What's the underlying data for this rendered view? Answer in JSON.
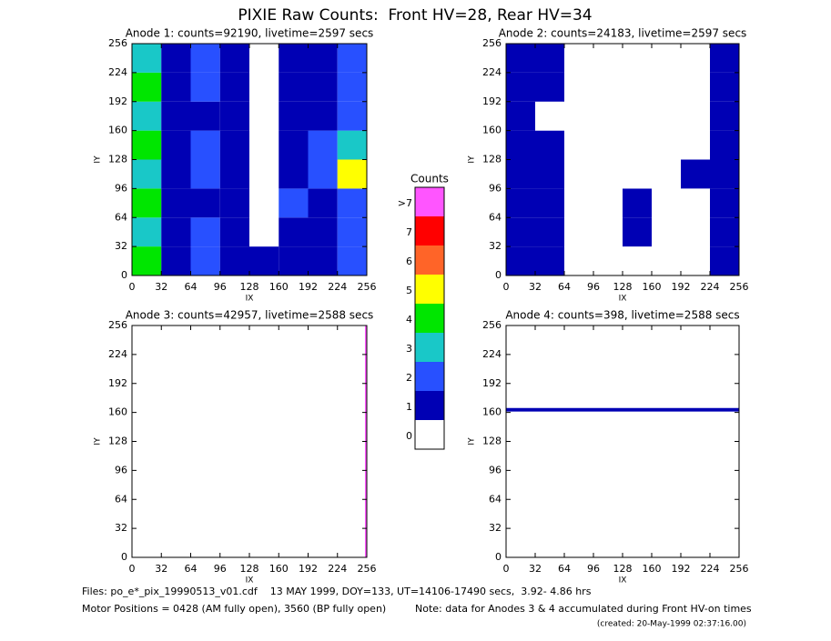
{
  "title": "PIXIE Raw Counts:  Front HV=28, Rear HV=34",
  "colorbar": {
    "title": "Counts",
    "ticks": [
      0,
      1,
      2,
      3,
      4,
      5,
      6,
      7,
      {
        "value": 8,
        "label": ">7"
      }
    ],
    "colors": [
      "#ffffff",
      "#0000b4",
      "#2850ff",
      "#19c8c8",
      "#00e600",
      "#ffff00",
      "#ff6428",
      "#ff0000",
      "#ff55ff"
    ]
  },
  "chart_data": [
    {
      "type": "heatmap",
      "title": "Anode 1: counts=92190, livetime=2597 secs",
      "x_label": "IX",
      "y_label": "IY",
      "xlim": [
        0,
        256
      ],
      "ylim": [
        0,
        256
      ],
      "xticks": [
        0,
        32,
        64,
        96,
        128,
        160,
        192,
        224,
        256
      ],
      "yticks": [
        0,
        32,
        64,
        96,
        128,
        160,
        192,
        224,
        256
      ],
      "xbins": [
        0,
        32,
        64,
        96,
        128,
        160,
        192,
        224,
        256
      ],
      "ybins": [
        0,
        32,
        64,
        96,
        128,
        160,
        192,
        224,
        256
      ],
      "z": [
        [
          4,
          1,
          2,
          1,
          1,
          1,
          1,
          2
        ],
        [
          3,
          1,
          2,
          1,
          0,
          1,
          1,
          2
        ],
        [
          4,
          1,
          1,
          1,
          0,
          2,
          1,
          2
        ],
        [
          3,
          1,
          2,
          1,
          0,
          1,
          2,
          5
        ],
        [
          4,
          1,
          2,
          1,
          0,
          1,
          2,
          3
        ],
        [
          3,
          1,
          1,
          1,
          0,
          1,
          1,
          2
        ],
        [
          4,
          1,
          2,
          1,
          0,
          1,
          1,
          2
        ],
        [
          3,
          1,
          2,
          1,
          0,
          1,
          1,
          2
        ]
      ]
    },
    {
      "type": "heatmap",
      "title": "Anode 2: counts=24183, livetime=2597 secs",
      "x_label": "IX",
      "y_label": "IY",
      "xlim": [
        0,
        256
      ],
      "ylim": [
        0,
        256
      ],
      "xticks": [
        0,
        32,
        64,
        96,
        128,
        160,
        192,
        224,
        256
      ],
      "yticks": [
        0,
        32,
        64,
        96,
        128,
        160,
        192,
        224,
        256
      ],
      "xbins": [
        0,
        32,
        64,
        96,
        128,
        160,
        192,
        224,
        256
      ],
      "ybins": [
        0,
        32,
        64,
        96,
        128,
        160,
        192,
        224,
        256
      ],
      "z": [
        [
          1,
          1,
          0,
          0,
          0,
          0,
          0,
          1
        ],
        [
          1,
          1,
          0,
          0,
          1,
          0,
          0,
          1
        ],
        [
          1,
          1,
          0,
          0,
          1,
          0,
          0,
          1
        ],
        [
          1,
          1,
          0,
          0,
          0,
          0,
          1,
          1
        ],
        [
          1,
          1,
          0,
          0,
          0,
          0,
          0,
          1
        ],
        [
          1,
          0,
          0,
          0,
          0,
          0,
          0,
          1
        ],
        [
          1,
          1,
          0,
          0,
          0,
          0,
          0,
          1
        ],
        [
          1,
          1,
          0,
          0,
          0,
          0,
          0,
          1
        ]
      ]
    },
    {
      "type": "heatmap",
      "title": "Anode 3: counts=42957, livetime=2588 secs",
      "x_label": "IX",
      "y_label": "IY",
      "xlim": [
        0,
        256
      ],
      "ylim": [
        0,
        256
      ],
      "xticks": [
        0,
        32,
        64,
        96,
        128,
        160,
        192,
        224,
        256
      ],
      "yticks": [
        0,
        32,
        64,
        96,
        128,
        160,
        192,
        224,
        256
      ],
      "xbins": [
        0,
        254,
        256
      ],
      "ybins": [
        0,
        256
      ],
      "z": [
        [
          0,
          8
        ]
      ]
    },
    {
      "type": "heatmap",
      "title": "Anode 4: counts=398, livetime=2588 secs",
      "x_label": "IX",
      "y_label": "IY",
      "xlim": [
        0,
        256
      ],
      "ylim": [
        0,
        256
      ],
      "xticks": [
        0,
        32,
        64,
        96,
        128,
        160,
        192,
        224,
        256
      ],
      "yticks": [
        0,
        32,
        64,
        96,
        128,
        160,
        192,
        224,
        256
      ],
      "xbins": [
        0,
        256
      ],
      "ybins": [
        0,
        161,
        165,
        256
      ],
      "z": [
        [
          0
        ],
        [
          1
        ],
        [
          0
        ]
      ]
    }
  ],
  "footer": {
    "files": "Files: po_e*_pix_19990513_v01.cdf    13 MAY 1999, DOY=133, UT=14106-17490 secs,  3.92- 4.86 hrs",
    "motor": "Motor Positions = 0428 (AM fully open), 3560 (BP fully open)",
    "note": "Note: data for Anodes 3 & 4 accumulated during Front HV-on times",
    "created": "(created: 20-May-1999 02:37:16.00)"
  }
}
